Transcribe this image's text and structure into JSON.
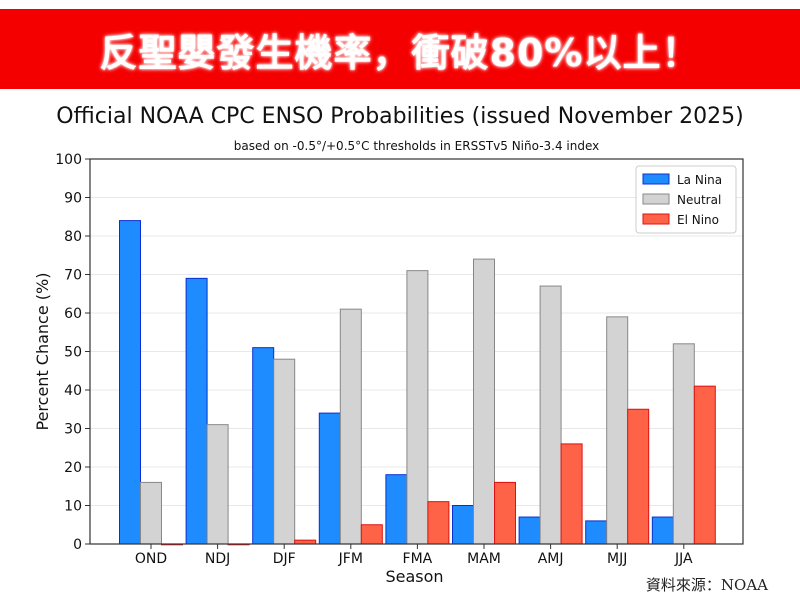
{
  "banner": {
    "text": "反聖嬰發生機率，衝破80%以上！",
    "color": "#f40000"
  },
  "source": "資料來源：NOAA",
  "chart_data": {
    "type": "bar",
    "title": "Official NOAA CPC ENSO Probabilities (issued November 2025)",
    "subtitle": "based on -0.5°/+0.5°C thresholds in ERSSTv5 Niño-3.4 index",
    "xlabel": "Season",
    "ylabel": "Percent Chance (%)",
    "ylim": [
      0,
      100
    ],
    "yticks": [
      0,
      10,
      20,
      30,
      40,
      50,
      60,
      70,
      80,
      90,
      100
    ],
    "grid": true,
    "legend_position": "top-right",
    "categories": [
      "OND",
      "NDJ",
      "DJF",
      "JFM",
      "FMA",
      "MAM",
      "AMJ",
      "MJJ",
      "JJA"
    ],
    "series": [
      {
        "name": "La Nina",
        "color": "#1e8cff",
        "edge": "#0a2fd0",
        "values": [
          84,
          69,
          51,
          34,
          18,
          10,
          7,
          6,
          7
        ]
      },
      {
        "name": "Neutral",
        "color": "#d3d3d3",
        "edge": "#888888",
        "values": [
          16,
          31,
          48,
          61,
          71,
          74,
          67,
          59,
          52
        ]
      },
      {
        "name": "El Nino",
        "color": "#ff6347",
        "edge": "#e01010",
        "values": [
          0,
          0,
          1,
          5,
          11,
          16,
          26,
          35,
          41
        ]
      }
    ]
  }
}
